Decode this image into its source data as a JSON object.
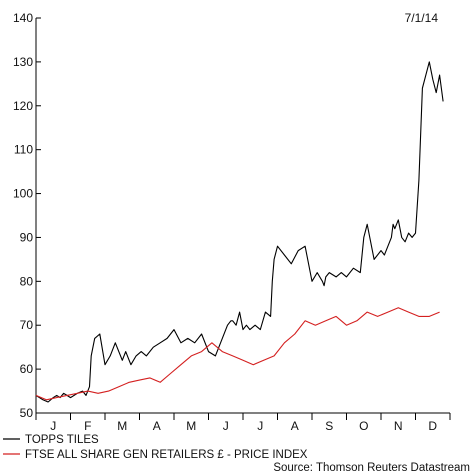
{
  "chart_data": {
    "type": "line",
    "date_label": "7/1/14",
    "source": "Source: Thomson Reuters Datastream",
    "ylim": [
      50,
      140
    ],
    "yticks": [
      50,
      60,
      70,
      80,
      90,
      100,
      110,
      120,
      130,
      140
    ],
    "months": [
      "J",
      "F",
      "M",
      "A",
      "M",
      "J",
      "J",
      "A",
      "S",
      "O",
      "N",
      "D"
    ],
    "grid": false,
    "legend_position": "bottom-left",
    "series": [
      {
        "name": "TOPPS TILES",
        "color": "#000000",
        "x": [
          0,
          0.2,
          0.35,
          0.5,
          0.6,
          0.7,
          0.8,
          0.9,
          1.0,
          1.2,
          1.35,
          1.45,
          1.55,
          1.6,
          1.7,
          1.85,
          2.0,
          2.15,
          2.3,
          2.5,
          2.6,
          2.75,
          2.9,
          3.05,
          3.2,
          3.4,
          3.6,
          3.8,
          4.0,
          4.2,
          4.4,
          4.6,
          4.8,
          5.0,
          5.2,
          5.4,
          5.55,
          5.65,
          5.7,
          5.8,
          5.9,
          6.0,
          6.1,
          6.2,
          6.35,
          6.5,
          6.65,
          6.8,
          6.85,
          6.9,
          7.0,
          7.2,
          7.4,
          7.6,
          7.8,
          8.0,
          8.15,
          8.3,
          8.35,
          8.4,
          8.5,
          8.7,
          8.85,
          9.0,
          9.2,
          9.4,
          9.5,
          9.6,
          9.8,
          10.0,
          10.1,
          10.2,
          10.3,
          10.35,
          10.4,
          10.5,
          10.6,
          10.7,
          10.8,
          10.9,
          11.0,
          11.1,
          11.2,
          11.4,
          11.5,
          11.6,
          11.7,
          11.8
        ],
        "values": [
          54,
          53,
          52.5,
          53.5,
          54,
          53.5,
          54.5,
          54,
          53.5,
          54.5,
          55,
          54,
          56,
          63,
          67,
          68,
          61,
          63,
          66,
          62,
          64,
          61,
          63,
          64,
          63,
          65,
          66,
          67,
          69,
          66,
          67,
          66,
          68,
          64,
          63,
          67,
          70,
          71,
          71,
          70,
          73,
          69,
          70,
          69,
          70,
          69,
          73,
          72,
          80,
          85,
          88,
          86,
          84,
          87,
          88,
          80,
          82,
          80,
          79,
          81,
          82,
          81,
          82,
          81,
          83,
          82,
          90,
          93,
          85,
          87,
          86,
          88,
          90,
          93,
          92,
          94,
          90,
          89,
          91,
          90,
          91,
          103,
          124,
          130,
          126,
          123,
          127,
          121
        ]
      },
      {
        "name": "FTSE ALL SHARE GEN RETAILERS £ - PRICE INDEX",
        "color": "#d42020",
        "x": [
          0,
          0.3,
          0.6,
          0.9,
          1.2,
          1.5,
          1.8,
          2.1,
          2.4,
          2.7,
          3.0,
          3.3,
          3.6,
          3.9,
          4.2,
          4.5,
          4.8,
          5.1,
          5.4,
          5.7,
          6.0,
          6.3,
          6.6,
          6.9,
          7.2,
          7.5,
          7.8,
          8.1,
          8.4,
          8.7,
          9.0,
          9.3,
          9.6,
          9.9,
          10.2,
          10.5,
          10.8,
          11.1,
          11.4,
          11.7
        ],
        "values": [
          54,
          53,
          53.5,
          54,
          54.5,
          55,
          54.5,
          55,
          56,
          57,
          57.5,
          58,
          57,
          59,
          61,
          63,
          64,
          66,
          64,
          63,
          62,
          61,
          62,
          63,
          66,
          68,
          71,
          70,
          71,
          72,
          70,
          71,
          73,
          72,
          73,
          74,
          73,
          72,
          72,
          73
        ]
      }
    ]
  }
}
